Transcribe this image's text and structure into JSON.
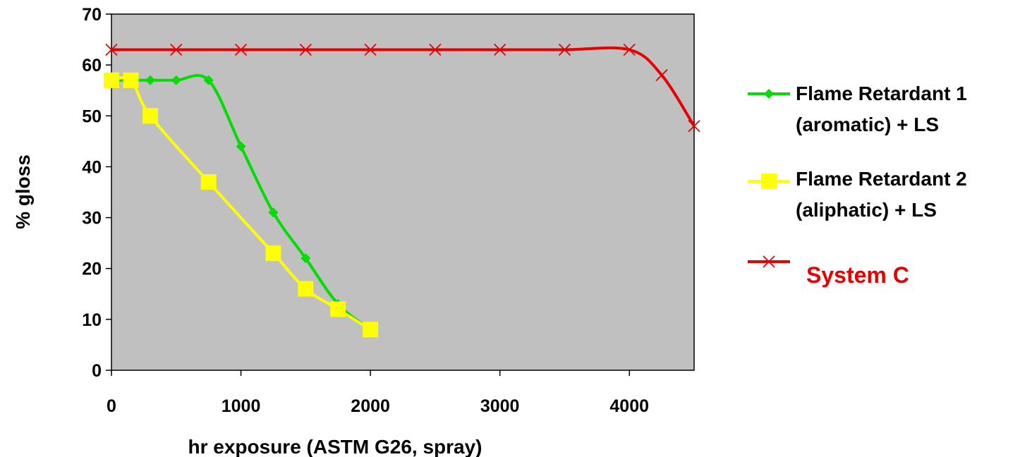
{
  "chart_data": {
    "type": "line",
    "xlabel": "hr exposure (ASTM G26, spray)",
    "ylabel": "% gloss",
    "xlim": [
      0,
      4500
    ],
    "ylim": [
      0,
      70
    ],
    "xticks": [
      0,
      1000,
      2000,
      3000,
      4000
    ],
    "yticks": [
      0,
      10,
      20,
      30,
      40,
      50,
      60,
      70
    ],
    "grid": false,
    "plot_background": "#c0c0c0",
    "legend_position": "right",
    "series": [
      {
        "name": "Flame Retardant 1 (aromatic) + LS",
        "legend_lines": [
          "Flame Retardant 1",
          "(aromatic) + LS"
        ],
        "color": "#00dd00",
        "marker": "diamond",
        "x": [
          0,
          150,
          300,
          500,
          750,
          1000,
          1250,
          1500,
          1750,
          2000
        ],
        "y": [
          57,
          57,
          57,
          57,
          57,
          44,
          31,
          22,
          13,
          8
        ]
      },
      {
        "name": "Flame Retardant 2 (aliphatic) + LS",
        "legend_lines": [
          "Flame Retardant 2",
          "(aliphatic) + LS"
        ],
        "color": "#ffff00",
        "marker": "square",
        "x": [
          0,
          150,
          300,
          750,
          1250,
          1500,
          1750,
          2000
        ],
        "y": [
          57,
          57,
          50,
          37,
          23,
          16,
          12,
          8
        ]
      },
      {
        "name": "System C",
        "legend_lines": [
          "System C"
        ],
        "color": "#e60000",
        "marker": "x",
        "x": [
          0,
          500,
          1000,
          1500,
          2000,
          2500,
          3000,
          3500,
          4000,
          4250,
          4500
        ],
        "y": [
          63,
          63,
          63,
          63,
          63,
          63,
          63,
          63,
          63,
          58,
          48
        ]
      }
    ]
  }
}
